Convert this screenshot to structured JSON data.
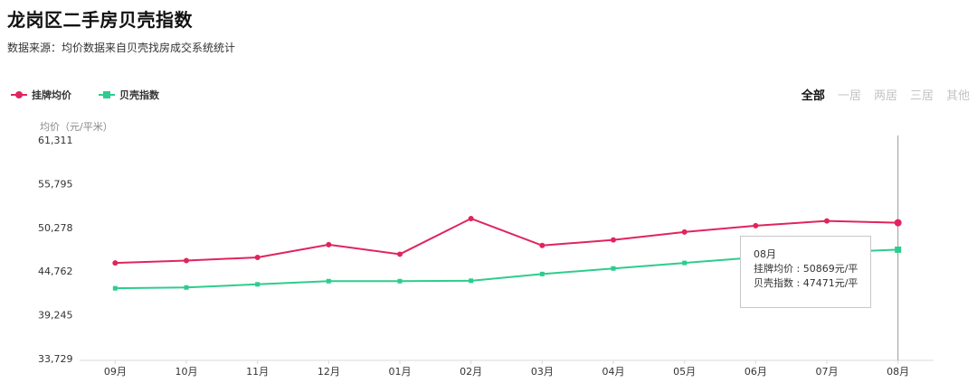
{
  "header": {
    "title": "龙岗区二手房贝壳指数",
    "source": "数据来源：均价数据来自贝壳找房成交系统统计"
  },
  "legend": [
    {
      "label": "挂牌均价",
      "color": "#e0245e",
      "marker": "circle"
    },
    {
      "label": "贝壳指数",
      "color": "#2ecc8f",
      "marker": "square"
    }
  ],
  "tabs": [
    {
      "label": "全部",
      "active": true
    },
    {
      "label": "一居",
      "active": false
    },
    {
      "label": "两居",
      "active": false
    },
    {
      "label": "三居",
      "active": false
    },
    {
      "label": "其他",
      "active": false
    }
  ],
  "chart_data": {
    "type": "line",
    "ylabel": "均价（元/平米）",
    "ylim": [
      33729,
      61311
    ],
    "yticks": [
      "33,729",
      "39,245",
      "44,762",
      "50,278",
      "55,795",
      "61,311"
    ],
    "categories": [
      "09月",
      "10月",
      "11月",
      "12月",
      "01月",
      "02月",
      "03月",
      "04月",
      "05月",
      "06月",
      "07月",
      "08月"
    ],
    "series": [
      {
        "name": "挂牌均价",
        "color": "#e0245e",
        "values": [
          45800,
          46100,
          46500,
          48100,
          46900,
          51400,
          48000,
          48700,
          49700,
          50500,
          51100,
          50869
        ]
      },
      {
        "name": "贝壳指数",
        "color": "#2ecc8f",
        "values": [
          42600,
          42700,
          43100,
          43500,
          43500,
          43550,
          44400,
          45100,
          45800,
          46500,
          47100,
          47471
        ]
      }
    ],
    "grid": false,
    "legend_position": "top-left",
    "highlight_index": 11
  },
  "tooltip": {
    "title": "08月",
    "line1": "挂牌均价 : 50869元/平",
    "line2": "贝壳指数 : 47471元/平"
  }
}
